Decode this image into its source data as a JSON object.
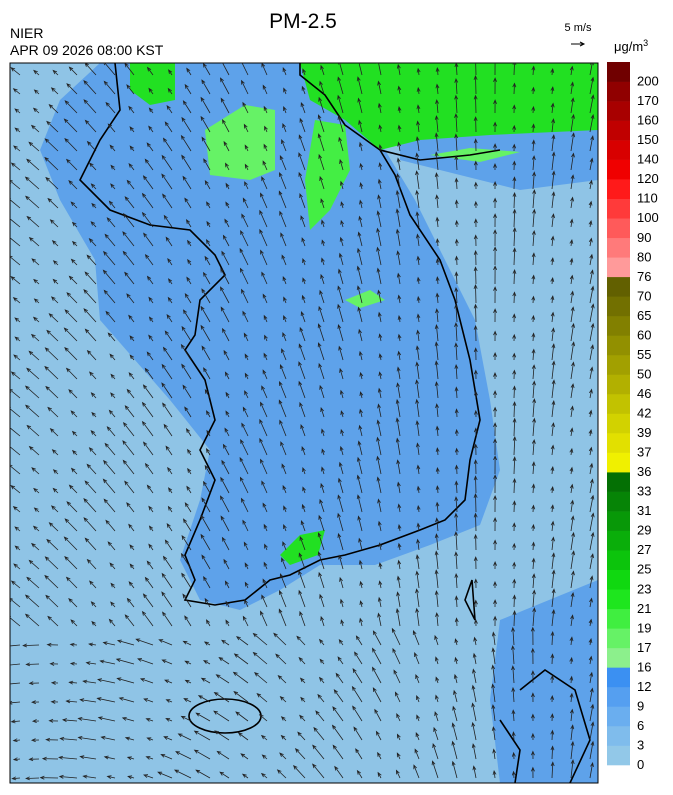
{
  "header": {
    "title": "PM-2.5",
    "source": "NIER",
    "timestamp": "APR 09 2026 08:00 KST"
  },
  "legend": {
    "wind_scale": "5 m/s",
    "unit": "μg/m",
    "unit_sup": "3",
    "ticks": [
      0,
      3,
      6,
      9,
      12,
      16,
      17,
      19,
      21,
      23,
      25,
      27,
      29,
      31,
      33,
      36,
      37,
      39,
      42,
      46,
      50,
      55,
      60,
      65,
      70,
      76,
      80,
      90,
      100,
      110,
      120,
      140,
      150,
      160,
      170,
      200
    ],
    "colors": [
      "#92c8e8",
      "#7fbcec",
      "#6aaeef",
      "#559ff0",
      "#3b90f2",
      "#8cf08c",
      "#66f266",
      "#40ee40",
      "#1ee61e",
      "#10d810",
      "#0cc40c",
      "#0aae0a",
      "#089808",
      "#068406",
      "#047004",
      "#f0f000",
      "#e2e000",
      "#d2d200",
      "#c2c200",
      "#b2b000",
      "#a2a000",
      "#929000",
      "#828000",
      "#727000",
      "#626000",
      "#ff9a9a",
      "#ff7a7a",
      "#ff5a5a",
      "#ff3a3a",
      "#ff1a1a",
      "#f00000",
      "#d80000",
      "#c00000",
      "#a80000",
      "#900000",
      "#700000"
    ]
  }
}
